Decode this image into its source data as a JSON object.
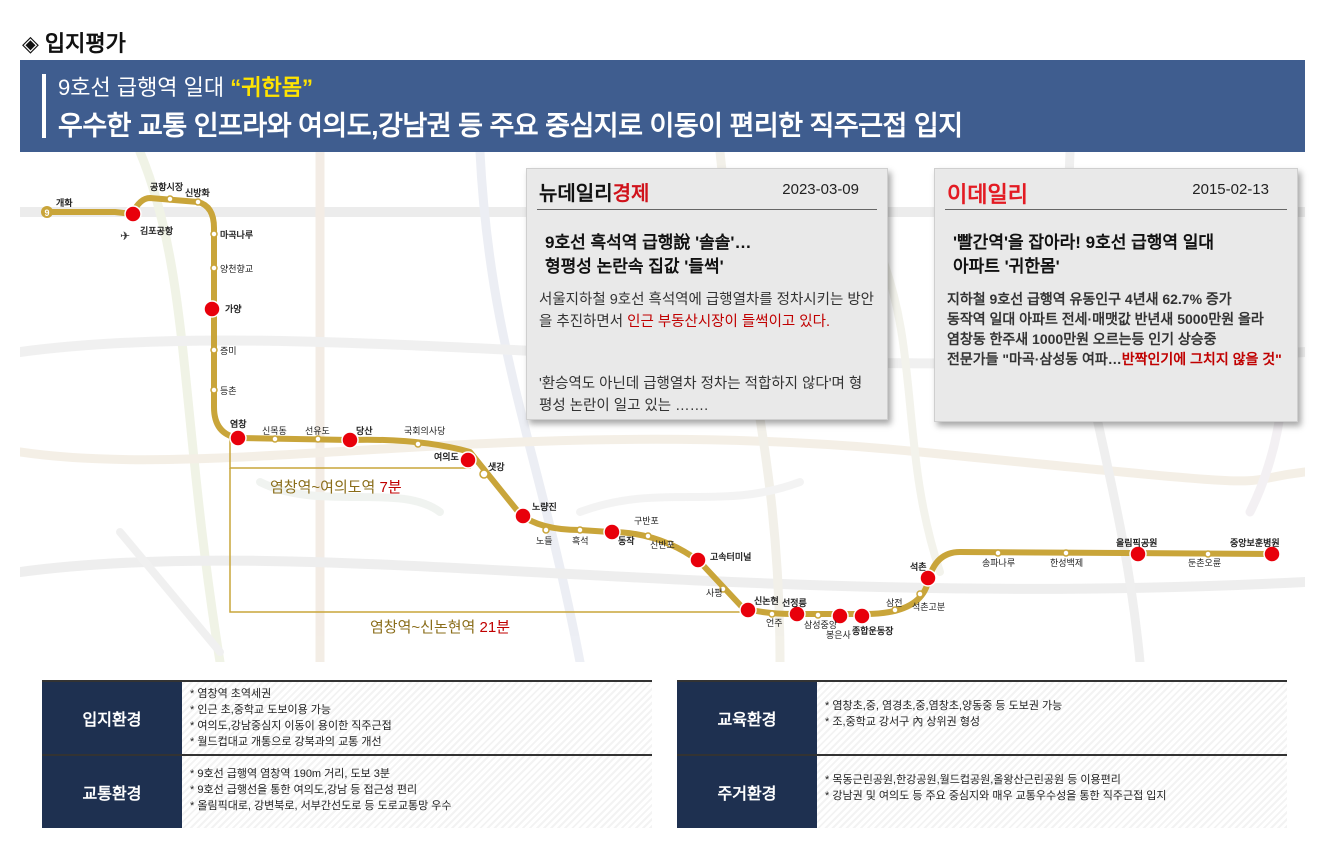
{
  "section_title": "입지평가",
  "banner": {
    "line1_prefix": "9호선 급행역 일대 ",
    "line1_highlight": "“귀한몸”",
    "line2": "우수한 교통 인프라와 여의도,강남권 등 주요 중심지로 이동이 편리한 직주근접 입지"
  },
  "map": {
    "line_badge": "9",
    "stations": [
      "개화",
      "김포공항",
      "공항시장",
      "신방화",
      "마곡나루",
      "양천향교",
      "가양",
      "증미",
      "등촌",
      "염창",
      "신목동",
      "선유도",
      "당산",
      "국회의사당",
      "여의도",
      "샛강",
      "노량진",
      "노들",
      "흑석",
      "동작",
      "구반포",
      "신반포",
      "고속터미널",
      "사평",
      "신논현",
      "언주",
      "선정릉",
      "삼성중앙",
      "봉은사",
      "종합운동장",
      "삼전",
      "석촌고분",
      "석촌",
      "송파나루",
      "한성백제",
      "올림픽공원",
      "둔촌오륜",
      "중앙보훈병원"
    ],
    "route1": {
      "prefix": "염창역~여의도역 ",
      "time": "7분"
    },
    "route2": {
      "prefix": "염창역~신논현역 ",
      "time": "21분"
    }
  },
  "news1": {
    "logo_a": "뉴데일리",
    "logo_b": "경제",
    "date": "2023-03-09",
    "headline_1": "9호선 흑석역 급행說 '솔솔'…",
    "headline_2": "형평성 논란속 집값 '들썩'",
    "body_a": "서울지하철 9호선 흑석역에 급행열차를 정차시키는 방안을 추진하면서 ",
    "body_red": "인근 부동산시장이 들썩이고 있다.",
    "body_b": "'환승역도 아닌데 급행열차 정차는 적합하지 않다'며 형평성 논란이 일고 있는 ……."
  },
  "news2": {
    "logo": "이데일리",
    "date": "2015-02-13",
    "headline_1": "'빨간역'을 잡아라! 9호선 급행역 일대",
    "headline_2": "아파트 '귀한몸'",
    "body_1": "지하철 9호선 급행역 유동인구 4년새 62.7% 증가",
    "body_2": "동작역 일대 아파트 전세·매맷값 반년새 5000만원 올라",
    "body_3": "염창동 한주새 1000만원 오르는등 인기 상승중",
    "body_4a": "전문가들 \"마곡·삼성동 여파…",
    "body_4red": "반짝인기에 그치지 않을 것\""
  },
  "info_left": [
    {
      "label": "입지환경",
      "items": [
        "* 염창역 초역세권",
        "* 인근 초,중학교 도보이용 가능",
        "* 여의도,강남중심지 이동이 용이한 직주근접",
        "* 월드컵대교 개통으로 강북과의 교통 개선"
      ]
    },
    {
      "label": "교통환경",
      "items": [
        "* 9호선 급행역 염창역 190m 거리, 도보 3분",
        "* 9호선 급행선을 통한 여의도,강남 등 접근성 편리",
        "* 올림픽대로, 강변북로, 서부간선도로 등 도로교통망 우수"
      ]
    }
  ],
  "info_right": [
    {
      "label": "교육환경",
      "items": [
        "* 염창초,중, 염경초,중,염창초,양동중 등 도보권 가능",
        "* 조,중학교 강서구 內 상위권 형성"
      ]
    },
    {
      "label": "주거환경",
      "items": [
        "* 목동근린공원,한강공원,월드컵공원,올왕산근린공원 등 이용편리",
        "* 강남권 및 여의도 등 주요 중심지와 매우 교통우수성을 통한 직주근접 입지"
      ]
    }
  ],
  "colors": {
    "banner": "#3f5d8f",
    "line9": "#c9a53a",
    "station_dot": "#e8000b",
    "label_box": "#1e3050",
    "highlight": "#ffe400",
    "red_text": "#c00000"
  }
}
